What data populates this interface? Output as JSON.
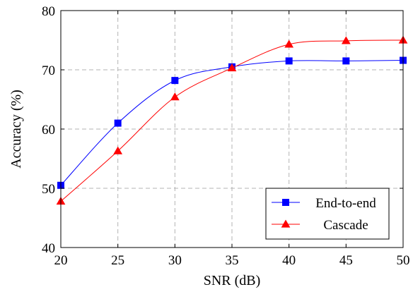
{
  "chart_data": {
    "type": "line",
    "xlabel": "SNR (dB)",
    "ylabel": "Accuracy (%)",
    "xlim": [
      20,
      50
    ],
    "ylim": [
      40,
      80
    ],
    "xticks": [
      20,
      25,
      30,
      35,
      40,
      45,
      50
    ],
    "yticks": [
      40,
      50,
      60,
      70,
      80
    ],
    "grid": true,
    "legend_position": "bottom-right",
    "x": [
      20,
      25,
      30,
      35,
      40,
      45,
      50
    ],
    "series": [
      {
        "name": "End-to-end",
        "values": [
          50.5,
          61.0,
          68.2,
          70.5,
          71.5,
          71.5,
          71.6
        ],
        "color": "#0000ff",
        "marker": "square"
      },
      {
        "name": "Cascade",
        "values": [
          47.8,
          56.3,
          65.4,
          70.3,
          74.3,
          74.9,
          75.0
        ],
        "color": "#ff0000",
        "marker": "triangle"
      }
    ]
  }
}
